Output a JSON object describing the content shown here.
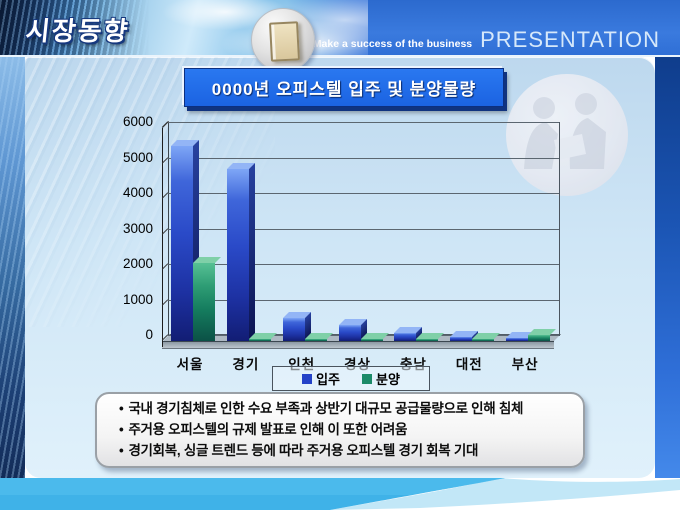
{
  "header": {
    "page_title": "시장동향",
    "tagline": "Make a success of the business",
    "brand": "PRESENTATION"
  },
  "chart_title": "0000년 오피스텔 입주 및 분양물량",
  "chart_data": {
    "type": "bar",
    "style": "3d-column",
    "title": "0000년 오피스텔 입주 및 분양물량",
    "categories": [
      "서울",
      "경기",
      "인천",
      "경상",
      "충남",
      "대전",
      "부산"
    ],
    "series": [
      {
        "name": "입주",
        "color": "#2443c8",
        "values": [
          5500,
          4850,
          650,
          450,
          230,
          100,
          80
        ]
      },
      {
        "name": "분양",
        "color": "#1b8a68",
        "values": [
          2200,
          50,
          50,
          50,
          50,
          50,
          170
        ]
      }
    ],
    "xlabel": "",
    "ylabel": "",
    "ylim": [
      0,
      6000
    ],
    "ytick_step": 1000,
    "grid": true,
    "legend_position": "bottom-center"
  },
  "notes": {
    "bullet_char": "•",
    "bullets": [
      "국내 경기침체로 인한 수요 부족과 상반기 대규모 공급물량으로 인해 침체",
      "주거용 오피스텔의 규제 발표로 인해 이 또한 어려움",
      "경기회복, 싱글 트렌드 등에 따라 주거용 오피스텔 경기 회복 기대"
    ]
  },
  "colors": {
    "header_blue": "#3272d9",
    "title_box_blue": "#1e6ce8",
    "bar_blue": "#2443c8",
    "bar_green": "#1b8a68",
    "panel_light_blue": "#cfe6f6",
    "footer_blue": "#3fb2e8"
  }
}
